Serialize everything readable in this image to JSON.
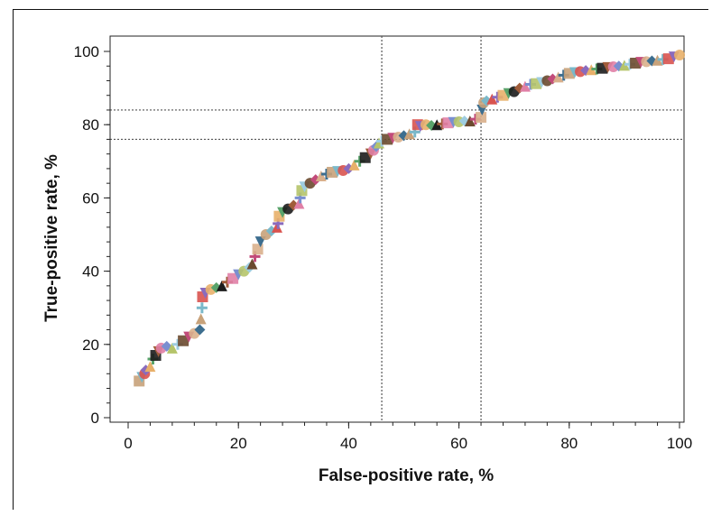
{
  "chart_data": {
    "type": "scatter",
    "title": "",
    "xlabel": "False-positive rate, %",
    "ylabel": "True-positive rate, %",
    "xlim": [
      0,
      100
    ],
    "ylim": [
      0,
      100
    ],
    "x_ticks": [
      "0",
      "20",
      "40",
      "60",
      "80",
      "100"
    ],
    "y_ticks": [
      "0",
      "20",
      "40",
      "60",
      "80",
      "100"
    ],
    "grid": false,
    "legend": "none",
    "reference_lines": {
      "x": [
        46,
        64
      ],
      "y": [
        76,
        84
      ]
    },
    "points": [
      [
        2,
        10
      ],
      [
        2.5,
        11
      ],
      [
        3,
        12
      ],
      [
        3.2,
        13
      ],
      [
        4,
        14
      ],
      [
        4.5,
        16
      ],
      [
        5,
        17
      ],
      [
        5.5,
        18
      ],
      [
        6,
        19
      ],
      [
        7,
        19.5
      ],
      [
        8,
        19
      ],
      [
        9,
        20
      ],
      [
        10,
        21
      ],
      [
        11,
        22
      ],
      [
        12,
        23
      ],
      [
        13,
        24
      ],
      [
        13.2,
        27
      ],
      [
        13.4,
        30
      ],
      [
        13.5,
        33
      ],
      [
        14,
        34
      ],
      [
        15,
        35
      ],
      [
        16,
        35.5
      ],
      [
        17,
        36
      ],
      [
        18,
        37
      ],
      [
        19,
        38
      ],
      [
        20,
        39
      ],
      [
        21,
        40
      ],
      [
        22,
        41
      ],
      [
        22.5,
        42
      ],
      [
        23,
        44
      ],
      [
        23.5,
        46
      ],
      [
        24,
        48
      ],
      [
        25,
        50
      ],
      [
        26,
        51
      ],
      [
        27,
        52
      ],
      [
        27.2,
        53
      ],
      [
        27.4,
        55
      ],
      [
        28,
        56
      ],
      [
        29,
        57
      ],
      [
        30,
        58
      ],
      [
        31,
        58.5
      ],
      [
        31.2,
        60
      ],
      [
        31.5,
        62
      ],
      [
        32,
        63
      ],
      [
        33,
        64
      ],
      [
        34,
        65
      ],
      [
        35,
        66
      ],
      [
        36,
        66.5
      ],
      [
        37,
        67
      ],
      [
        38,
        67.2
      ],
      [
        39,
        67.5
      ],
      [
        40,
        68
      ],
      [
        41,
        69
      ],
      [
        42,
        70
      ],
      [
        43,
        71
      ],
      [
        44,
        72
      ],
      [
        44.5,
        73
      ],
      [
        45,
        74
      ],
      [
        45.5,
        75
      ],
      [
        46,
        75.5
      ],
      [
        47,
        76
      ],
      [
        48,
        76.3
      ],
      [
        49,
        76.6
      ],
      [
        50,
        77
      ],
      [
        51,
        77.5
      ],
      [
        52,
        78
      ],
      [
        52.5,
        80
      ],
      [
        53,
        79.5
      ],
      [
        54,
        80
      ],
      [
        55,
        79.8
      ],
      [
        56,
        80
      ],
      [
        57,
        80.2
      ],
      [
        58,
        80.5
      ],
      [
        59,
        80.6
      ],
      [
        60,
        80.8
      ],
      [
        61,
        81
      ],
      [
        62,
        81
      ],
      [
        63,
        81.5
      ],
      [
        64,
        82
      ],
      [
        64.2,
        84
      ],
      [
        64.5,
        86
      ],
      [
        65,
        86.5
      ],
      [
        66,
        87
      ],
      [
        67,
        87.5
      ],
      [
        68,
        88
      ],
      [
        69,
        88.5
      ],
      [
        70,
        89
      ],
      [
        71,
        90
      ],
      [
        72,
        90.5
      ],
      [
        73,
        91
      ],
      [
        74,
        91.2
      ],
      [
        75,
        91.5
      ],
      [
        76,
        92
      ],
      [
        77,
        92.5
      ],
      [
        78,
        93
      ],
      [
        79,
        93.5
      ],
      [
        80,
        94
      ],
      [
        81,
        94.2
      ],
      [
        82,
        94.5
      ],
      [
        83,
        94.8
      ],
      [
        84,
        95
      ],
      [
        85,
        95.2
      ],
      [
        86,
        95.4
      ],
      [
        87,
        95.6
      ],
      [
        88,
        95.8
      ],
      [
        89,
        96
      ],
      [
        90,
        96.2
      ],
      [
        91,
        96.5
      ],
      [
        92,
        96.8
      ],
      [
        93,
        97
      ],
      [
        94,
        97.2
      ],
      [
        95,
        97.4
      ],
      [
        96,
        97.6
      ],
      [
        97,
        97.8
      ],
      [
        98,
        98
      ],
      [
        99,
        98.5
      ],
      [
        100,
        99
      ]
    ],
    "colors": [
      "#c8a27a",
      "#7ab8c9",
      "#d9534f",
      "#8a6bbd",
      "#e8b06a",
      "#5aa36b",
      "#1c1c1c",
      "#a05c3a",
      "#e07fa6",
      "#7a8fd0",
      "#b5c46a",
      "#9ecde0",
      "#6b4a2f",
      "#c24b7a",
      "#d9b08c",
      "#3d6e8f"
    ]
  }
}
